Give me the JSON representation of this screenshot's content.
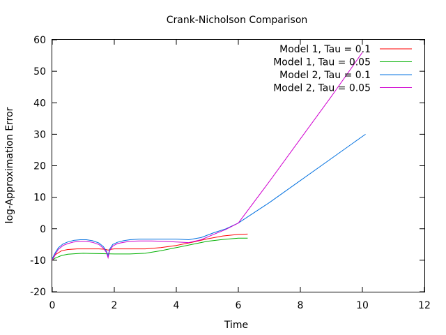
{
  "chart_data": {
    "type": "line",
    "title": "Crank-Nicholson Comparison",
    "xlabel": "Time",
    "ylabel": "log-Approximation Error",
    "xlim": [
      0,
      12
    ],
    "ylim": [
      -20,
      60
    ],
    "xticks": [
      "0",
      "2",
      "4",
      "6",
      "8",
      "10",
      "12"
    ],
    "yticks": [
      "-20",
      "-10",
      "0",
      "10",
      "20",
      "30",
      "40",
      "50",
      "60"
    ],
    "grid": false,
    "legend_position": "top-right",
    "series": [
      {
        "name": "Model 1, Tau = 0.1",
        "color": "#ff0000",
        "x": [
          0,
          0.1,
          0.3,
          0.5,
          0.8,
          1.0,
          1.2,
          1.5,
          1.7,
          1.8,
          1.9,
          2.0,
          2.3,
          2.6,
          3.0,
          3.5,
          4.0,
          4.5,
          5.0,
          5.5,
          6.0,
          6.3
        ],
        "y": [
          -10,
          -8.2,
          -7.0,
          -6.6,
          -6.4,
          -6.4,
          -6.4,
          -6.4,
          -6.5,
          -6.8,
          -6.5,
          -6.4,
          -6.4,
          -6.4,
          -6.4,
          -6.0,
          -5.3,
          -4.3,
          -3.2,
          -2.3,
          -1.8,
          -1.7
        ]
      },
      {
        "name": "Model 1, Tau = 0.05",
        "color": "#00b000",
        "x": [
          0,
          0.1,
          0.3,
          0.5,
          0.8,
          1.0,
          1.5,
          2.0,
          2.5,
          3.0,
          3.5,
          4.0,
          4.5,
          5.0,
          5.5,
          6.0,
          6.3
        ],
        "y": [
          -10,
          -9.3,
          -8.5,
          -8.1,
          -7.9,
          -7.8,
          -7.9,
          -8.0,
          -8.0,
          -7.8,
          -7.0,
          -6.0,
          -5.0,
          -4.0,
          -3.4,
          -3.0,
          -3.0
        ]
      },
      {
        "name": "Model 2, Tau = 0.1",
        "color": "#0070e0",
        "x": [
          0,
          0.1,
          0.2,
          0.35,
          0.5,
          0.7,
          0.9,
          1.1,
          1.3,
          1.5,
          1.65,
          1.75,
          1.8,
          1.85,
          1.95,
          2.1,
          2.3,
          2.5,
          2.8,
          3.2,
          3.6,
          4.0,
          4.4,
          4.8,
          5.2,
          5.6,
          6.0,
          7.0,
          8.0,
          9.0,
          10.0,
          10.1
        ],
        "y": [
          -9.5,
          -7.5,
          -6.0,
          -4.8,
          -4.2,
          -3.7,
          -3.5,
          -3.5,
          -3.8,
          -4.5,
          -5.7,
          -7.2,
          -8.6,
          -6.5,
          -5.0,
          -4.3,
          -3.8,
          -3.5,
          -3.3,
          -3.3,
          -3.3,
          -3.3,
          -3.5,
          -2.8,
          -1.3,
          0.0,
          1.8,
          8.3,
          15.3,
          22.3,
          29.3,
          30.0
        ]
      },
      {
        "name": "Model 2, Tau = 0.05",
        "color": "#d000d0",
        "x": [
          0,
          0.1,
          0.2,
          0.35,
          0.5,
          0.7,
          0.9,
          1.1,
          1.3,
          1.5,
          1.65,
          1.75,
          1.8,
          1.85,
          1.95,
          2.1,
          2.3,
          2.5,
          2.8,
          3.2,
          3.6,
          4.0,
          4.4,
          4.8,
          5.2,
          5.6,
          6.0,
          7.0,
          8.0,
          9.0,
          10.0
        ],
        "y": [
          -10,
          -8.0,
          -6.5,
          -5.3,
          -4.7,
          -4.2,
          -4.0,
          -4.0,
          -4.3,
          -5.0,
          -6.2,
          -7.6,
          -9.2,
          -7.0,
          -5.5,
          -4.7,
          -4.3,
          -4.0,
          -3.9,
          -3.9,
          -4.0,
          -4.2,
          -4.4,
          -3.5,
          -1.8,
          -0.2,
          1.8,
          15.0,
          28.5,
          42.0,
          56.0
        ]
      }
    ]
  }
}
